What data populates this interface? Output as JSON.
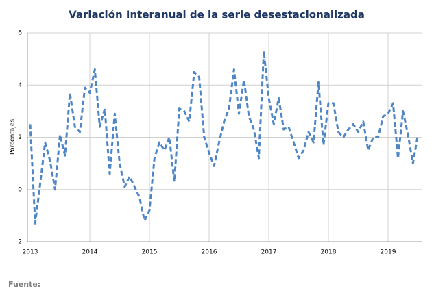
{
  "chart_data": {
    "type": "line",
    "subtitle": "Variación Interanual de la serie desestacionalizada",
    "y_label": "Porcentajes",
    "source": "Fuente:",
    "categories": [
      "2013",
      null,
      null,
      null,
      null,
      null,
      null,
      null,
      null,
      null,
      null,
      null,
      "2014",
      null,
      null,
      null,
      null,
      null,
      null,
      null,
      null,
      null,
      null,
      null,
      "2015",
      null,
      null,
      null,
      null,
      null,
      null,
      null,
      null,
      null,
      null,
      null,
      "2016",
      null,
      null,
      null,
      null,
      null,
      null,
      null,
      null,
      null,
      null,
      null,
      "2017",
      null,
      null,
      null,
      null,
      null,
      null,
      null,
      null,
      null,
      null,
      null,
      "2018",
      null,
      null,
      null,
      null,
      null,
      null,
      null,
      null,
      null,
      null,
      null,
      "2019",
      null,
      null,
      null,
      null,
      null,
      null
    ],
    "series": [
      {
        "name": "Variación interanual",
        "color": "#4f86c6",
        "dashed": true,
        "values": [
          2.5,
          -1.3,
          0.2,
          1.8,
          1.1,
          0.0,
          2.1,
          1.3,
          3.7,
          2.4,
          2.2,
          3.9,
          3.7,
          4.6,
          2.4,
          3.1,
          0.6,
          2.9,
          1.0,
          0.1,
          0.5,
          0.1,
          -0.3,
          -1.2,
          -0.8,
          1.2,
          1.8,
          1.5,
          2.0,
          0.3,
          3.1,
          3.0,
          2.6,
          4.5,
          4.3,
          2.0,
          1.4,
          0.9,
          1.8,
          2.6,
          3.1,
          4.6,
          2.9,
          4.2,
          2.8,
          2.3,
          1.2,
          5.3,
          3.5,
          2.5,
          3.5,
          2.3,
          2.4,
          1.8,
          1.2,
          1.5,
          2.2,
          1.8,
          4.1,
          1.7,
          3.3,
          3.3,
          2.2,
          2.0,
          2.3,
          2.5,
          2.2,
          2.6,
          1.5,
          2.0,
          2.0,
          2.8,
          2.9,
          3.3,
          1.2,
          3.0,
          2.1,
          1.0,
          2.1
        ]
      }
    ],
    "ylim": [
      -2,
      6
    ],
    "yticks": [
      -2,
      0,
      2,
      4,
      6
    ],
    "grid": true
  }
}
